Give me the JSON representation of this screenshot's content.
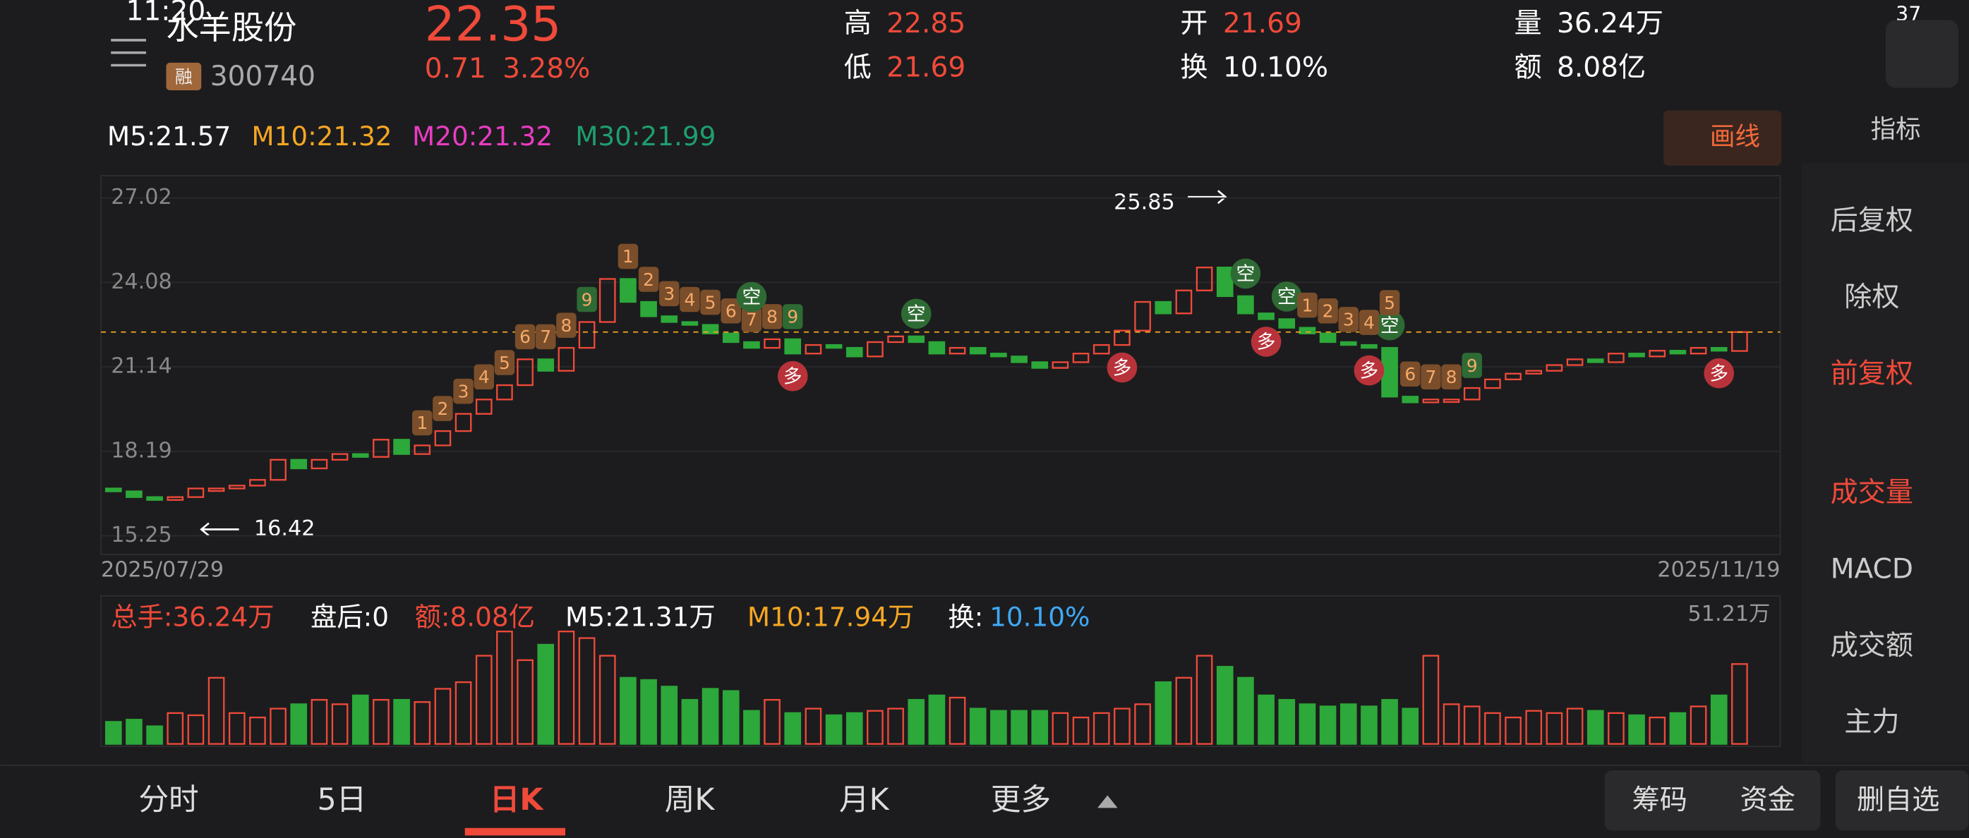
{
  "status": {
    "time": "11:20",
    "battery": "37"
  },
  "header": {
    "name": "水羊股份",
    "tag": "融",
    "code": "300740",
    "price": "22.35",
    "change": "0.71",
    "pct": "3.28%",
    "high_label": "高",
    "high": "22.85",
    "low_label": "低",
    "low": "21.69",
    "open_label": "开",
    "open": "21.69",
    "turnover_label": "换",
    "turnover": "10.10%",
    "vol_label": "量",
    "vol": "36.24万",
    "amt_label": "额",
    "amt": "8.08亿"
  },
  "ma_legend": [
    "M5:21.57",
    "M10:21.32",
    "M20:21.32",
    "M30:21.99"
  ],
  "draw_button": "画线",
  "indicator": "指标",
  "side_menu": [
    "后复权",
    "除权",
    "前复权",
    "成交量",
    "MACD",
    "成交额",
    "主力"
  ],
  "chart_data": {
    "type": "candlestick",
    "ylim": [
      14.6,
      27.8
    ],
    "yticks": [
      27.02,
      24.08,
      21.14,
      18.19,
      15.25
    ],
    "annotations": {
      "high": "25.85",
      "low": "16.42"
    },
    "dates": [
      "2025/07/29",
      "2025/11/19"
    ],
    "open": [
      16.9,
      16.8,
      16.6,
      16.5,
      16.6,
      16.9,
      16.9,
      17.0,
      17.2,
      17.9,
      17.6,
      17.9,
      18.1,
      18.0,
      18.6,
      18.1,
      18.4,
      18.9,
      19.5,
      20.0,
      20.5,
      21.4,
      21.0,
      21.8,
      22.7,
      24.2,
      23.4,
      22.9,
      22.7,
      22.6,
      22.3,
      22.0,
      21.8,
      22.1,
      21.6,
      21.9,
      21.8,
      21.5,
      22.0,
      22.2,
      22.0,
      21.6,
      21.8,
      21.6,
      21.5,
      21.3,
      21.1,
      21.3,
      21.6,
      21.9,
      22.4,
      23.4,
      23.0,
      23.8,
      24.6,
      23.6,
      23.0,
      22.8,
      22.5,
      22.3,
      22.0,
      21.9,
      21.8,
      20.1,
      19.9,
      20.0,
      20.0,
      20.4,
      20.7,
      20.9,
      21.0,
      21.2,
      21.4,
      21.3,
      21.6,
      21.5,
      21.7,
      21.6,
      21.8,
      21.69
    ],
    "close": [
      16.8,
      16.6,
      16.5,
      16.6,
      16.9,
      16.9,
      17.0,
      17.2,
      17.9,
      17.6,
      17.9,
      18.1,
      18.0,
      18.6,
      18.1,
      18.4,
      18.9,
      19.5,
      20.0,
      20.5,
      21.4,
      21.0,
      21.8,
      22.7,
      24.2,
      23.4,
      22.9,
      22.7,
      22.6,
      22.3,
      22.0,
      21.8,
      22.1,
      21.6,
      21.9,
      21.8,
      21.5,
      22.0,
      22.2,
      22.0,
      21.6,
      21.8,
      21.6,
      21.5,
      21.3,
      21.1,
      21.3,
      21.6,
      21.9,
      22.4,
      23.4,
      23.0,
      23.8,
      24.6,
      23.6,
      23.0,
      22.8,
      22.5,
      22.3,
      22.0,
      21.9,
      21.8,
      20.1,
      19.9,
      20.0,
      20.0,
      20.4,
      20.7,
      20.9,
      21.0,
      21.2,
      21.4,
      21.3,
      21.6,
      21.5,
      21.7,
      21.6,
      21.8,
      21.7,
      22.35
    ],
    "volume": [
      10,
      11,
      8,
      14,
      13,
      30,
      14,
      12,
      16,
      18,
      20,
      18,
      22,
      20,
      20,
      19,
      25,
      28,
      40,
      51,
      38,
      45,
      51,
      48,
      40,
      30,
      29,
      26,
      20,
      25,
      24,
      15,
      20,
      14,
      16,
      13,
      14,
      15,
      16,
      20,
      22,
      21,
      16,
      15,
      15,
      15,
      14,
      12,
      14,
      16,
      18,
      28,
      30,
      40,
      35,
      30,
      22,
      20,
      18,
      17,
      18,
      17,
      20,
      16,
      40,
      18,
      17,
      14,
      12,
      15,
      14,
      16,
      15,
      14,
      13,
      12,
      14,
      17,
      22,
      36.24
    ],
    "vlim": [
      0,
      51.21
    ],
    "signals": [
      {
        "label": "1",
        "candle": 15
      },
      {
        "label": "2",
        "candle": 16
      },
      {
        "label": "3",
        "candle": 17
      },
      {
        "label": "4",
        "candle": 18
      },
      {
        "label": "5",
        "candle": 19
      },
      {
        "label": "6",
        "candle": 20
      },
      {
        "label": "7",
        "candle": 21
      },
      {
        "label": "8",
        "candle": 22
      },
      {
        "label": "9",
        "candle": 23
      },
      {
        "label": "1",
        "candle": 25
      },
      {
        "label": "2",
        "candle": 26
      },
      {
        "label": "3",
        "candle": 27
      },
      {
        "label": "4",
        "candle": 28
      },
      {
        "label": "5",
        "candle": 29
      },
      {
        "label": "6",
        "candle": 30
      },
      {
        "label": "7",
        "candle": 31
      },
      {
        "label": "8",
        "candle": 32
      },
      {
        "label": "9",
        "candle": 33
      },
      {
        "label": "空",
        "candle": 31
      },
      {
        "label": "多",
        "candle": 33
      },
      {
        "label": "空",
        "candle": 39
      },
      {
        "label": "多",
        "candle": 49
      },
      {
        "label": "空",
        "candle": 55
      },
      {
        "label": "多",
        "candle": 56
      },
      {
        "label": "空",
        "candle": 57
      },
      {
        "label": "多",
        "candle": 61
      },
      {
        "label": "空",
        "candle": 62
      },
      {
        "label": "1",
        "candle": 58
      },
      {
        "label": "2",
        "candle": 59
      },
      {
        "label": "3",
        "candle": 60
      },
      {
        "label": "4",
        "candle": 61
      },
      {
        "label": "5",
        "candle": 62
      },
      {
        "label": "6",
        "candle": 63
      },
      {
        "label": "7",
        "candle": 64
      },
      {
        "label": "8",
        "candle": 65
      },
      {
        "label": "9",
        "candle": 66
      },
      {
        "label": "多",
        "candle": 78
      }
    ]
  },
  "volume_legend": {
    "total": "总手:36.24万",
    "after": "盘后:0",
    "amount": "额:8.08亿",
    "m5": "M5:21.31万",
    "m10": "M10:17.94万",
    "turnover_label": "换:",
    "turnover": "10.10%",
    "max": "51.21万"
  },
  "tabs": [
    "分时",
    "5日",
    "日K",
    "周K",
    "月K",
    "更多"
  ],
  "buttons": [
    "筹码",
    "资金",
    "删自选"
  ]
}
